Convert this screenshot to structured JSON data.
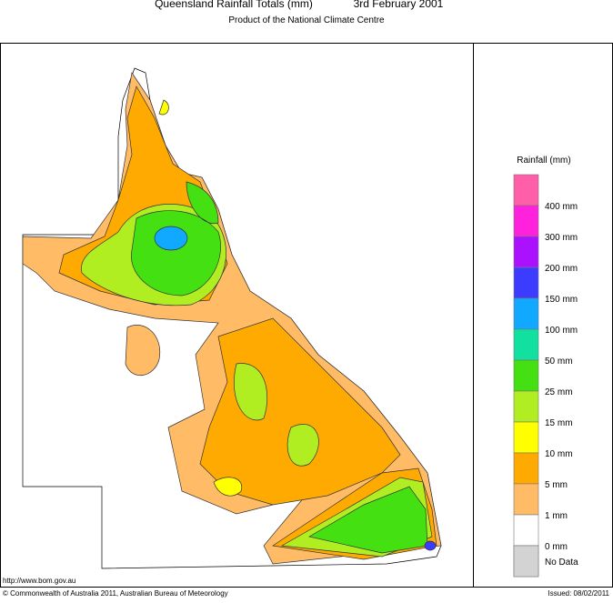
{
  "header": {
    "title": "Queensland Rainfall Totals (mm)",
    "date": "3rd February 2001",
    "subtitle": "Product of the National Climate Centre"
  },
  "legend": {
    "title": "Rainfall (mm)",
    "items": [
      {
        "color": "#ff5fa8",
        "label": null
      },
      {
        "color": "#ff22dd",
        "label": "400 mm"
      },
      {
        "color": "#aa11ff",
        "label": "300 mm"
      },
      {
        "color": "#3c3cff",
        "label": "200 mm"
      },
      {
        "color": "#11a8ff",
        "label": "150 mm"
      },
      {
        "color": "#11e0a0",
        "label": "100 mm"
      },
      {
        "color": "#44e011",
        "label": "50 mm"
      },
      {
        "color": "#b0ee22",
        "label": "25 mm"
      },
      {
        "color": "#ffff00",
        "label": "15 mm"
      },
      {
        "color": "#ffaa00",
        "label": "10 mm"
      },
      {
        "color": "#ffbb66",
        "label": "5 mm"
      },
      {
        "color": "#ffffff",
        "label": "1 mm"
      },
      {
        "color": "#d3d3d3",
        "label": "0 mm"
      }
    ],
    "no_data": "No Data"
  },
  "footer": {
    "url": "http://www.bom.gov.au",
    "copyright": "© Commonwealth of Australia 2011, Australian Bureau of Meteorology",
    "issued": "Issued: 08/02/2011"
  }
}
